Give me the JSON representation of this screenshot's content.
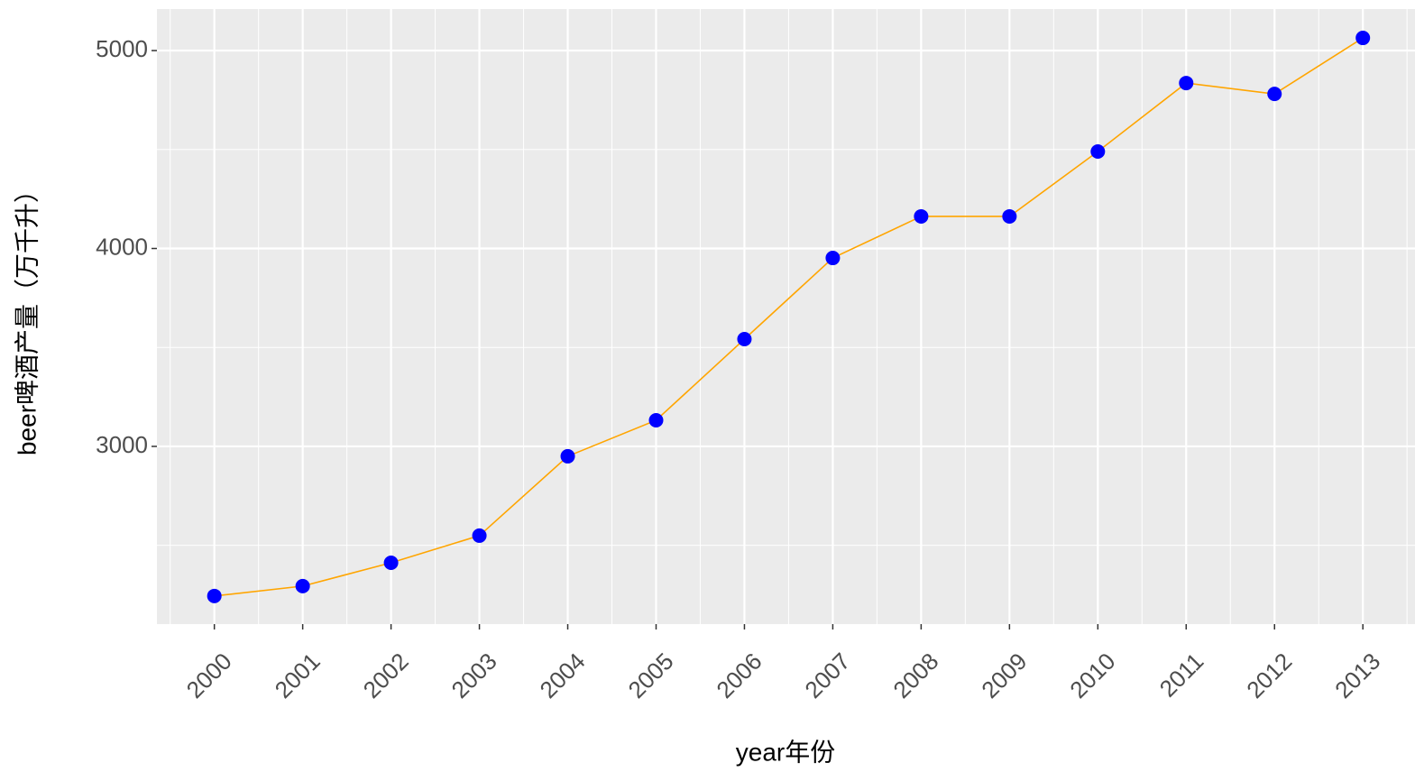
{
  "chart_data": {
    "type": "line",
    "x": [
      2000,
      2001,
      2002,
      2003,
      2004,
      2005,
      2006,
      2007,
      2008,
      2009,
      2010,
      2011,
      2012,
      2013
    ],
    "values": [
      2244,
      2294,
      2412,
      2549,
      2950,
      3132,
      3542,
      3952,
      4162,
      4162,
      4490,
      4836,
      4781,
      5064
    ],
    "line_color": "#ffa500",
    "point_color": "#0000ff",
    "xlabel": "year年份",
    "ylabel": "beer啤酒产量（万千升）",
    "xlim": [
      1999.35,
      2013.59
    ],
    "xticks": [
      2000,
      2001,
      2002,
      2003,
      2004,
      2005,
      2006,
      2007,
      2008,
      2009,
      2010,
      2011,
      2012,
      2013
    ],
    "ylim": [
      2102,
      5210
    ],
    "yticks": [
      3000,
      4000,
      5000
    ],
    "grid": true
  }
}
